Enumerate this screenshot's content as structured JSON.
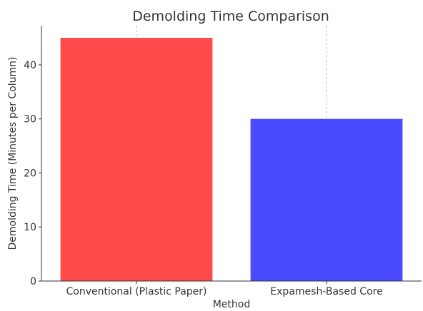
{
  "chart_data": {
    "type": "bar",
    "title": "Demolding Time Comparison",
    "xlabel": "Method",
    "ylabel": "Demolding Time (Minutes per Column)",
    "categories": [
      "Conventional (Plastic Paper)",
      "Expamesh-Based Core"
    ],
    "values": [
      45,
      30
    ],
    "colors": [
      "#ff4a4a",
      "#4a4aff"
    ],
    "ylim": [
      0,
      47.25
    ],
    "yticks": [
      0,
      10,
      20,
      30,
      40
    ],
    "grid": "vertical dashed, x-axis only"
  }
}
